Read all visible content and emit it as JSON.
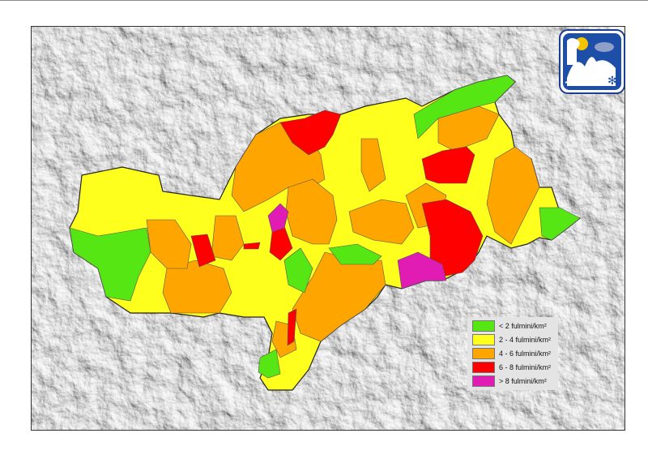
{
  "legend": {
    "items": [
      {
        "label": "< 2 fulmini/km²",
        "color": "#55e614"
      },
      {
        "label": "2 - 4 fulmini/km²",
        "color": "#ffff1e"
      },
      {
        "label": "4 - 6 fulmini/km²",
        "color": "#ffa500"
      },
      {
        "label": "6 - 8 fulmini/km²",
        "color": "#ff0000"
      },
      {
        "label": "> 8 fulmini/km²",
        "color": "#e01cb4"
      }
    ]
  },
  "logo": {
    "icon": "weather-service-logo"
  }
}
